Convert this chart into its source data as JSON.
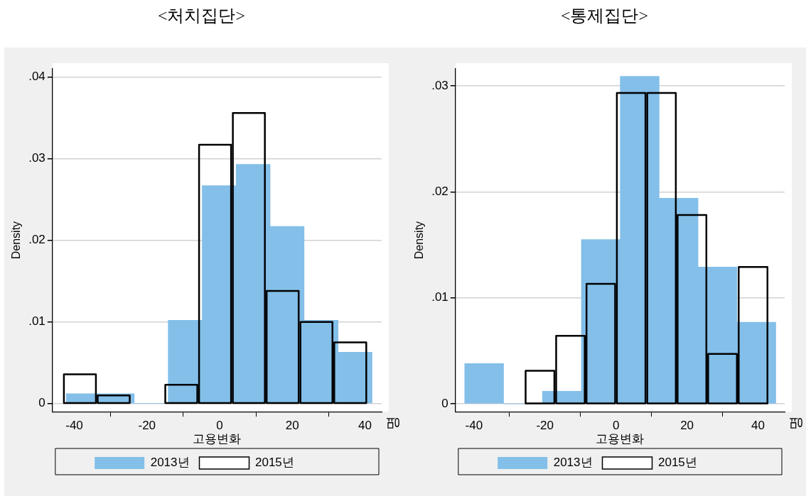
{
  "chart_data": [
    {
      "type": "histogram",
      "title": "<처치집단>",
      "xlabel": "고용변화",
      "ylabel": "Density",
      "bins": [
        -42.2,
        -32.85,
        -23.5,
        -14.15,
        -4.8,
        4.55,
        13.9,
        23.25,
        32.6,
        41.95
      ],
      "series": [
        {
          "name": "2013년",
          "color": "#83bfe9",
          "values": [
            0.0012,
            0.0012,
            0,
            0.0102,
            0.0267,
            0.0293,
            0.0217,
            0.0102,
            0.0063
          ]
        },
        {
          "name": "2015년",
          "color": "#000000",
          "line_style": "solid",
          "bins": [
            -43.1,
            -33.8,
            -24.5,
            -15.2,
            -5.9,
            3.4,
            12.7,
            22.0,
            31.3,
            40.6
          ],
          "values": [
            0.0037,
            0.0011,
            0,
            0.0024,
            0.0318,
            0.0357,
            0.0139,
            0.0101,
            0.0076
          ]
        }
      ],
      "xlim": [
        -46,
        44.6
      ],
      "xticks": [
        -40,
        -20,
        0,
        20,
        40
      ],
      "ylim": [
        -0.001,
        0.041
      ],
      "yticks": [
        0,
        {
          "value": 0.01,
          "label": ".01"
        },
        {
          "value": 0.02,
          "label": ".02"
        },
        {
          "value": 0.03,
          "label": ".03"
        },
        {
          "value": 0.04,
          "label": ".04"
        }
      ],
      "grid": "y",
      "legend": "bottom",
      "annotations": [
        "명"
      ]
    },
    {
      "type": "histogram",
      "title": "<통제집단>",
      "xlabel": "고용변화",
      "ylabel": "Density",
      "bins": [
        -42.6,
        -31.65,
        -20.7,
        -9.75,
        1.2,
        12.15,
        23.1,
        34.05,
        45.0
      ],
      "series": [
        {
          "name": "2013년",
          "color": "#83bfe9",
          "values": [
            0.0038,
            0,
            0.0012,
            0.0155,
            0.0309,
            0.0194,
            0.0129,
            0.0077
          ]
        },
        {
          "name": "2015년",
          "color": "#000000",
          "line_style": "solid",
          "bins": [
            -25.7,
            -17.1,
            -8.55,
            0,
            8.55,
            17.1,
            25.7,
            34.3,
            42.9
          ],
          "values": [
            0.0032,
            0.0065,
            0.0114,
            0.0294,
            0.0294,
            0.0179,
            0.0048,
            0.013
          ]
        }
      ],
      "xlim": [
        -45.2,
        47.5
      ],
      "xticks": [
        -40,
        -20,
        0,
        20,
        40
      ],
      "ylim": [
        -0.00074,
        0.0316
      ],
      "yticks": [
        0,
        {
          "value": 0.01,
          "label": ".01"
        },
        {
          "value": 0.02,
          "label": ".02"
        },
        {
          "value": 0.03,
          "label": ".03"
        }
      ],
      "grid": "y",
      "legend": "bottom",
      "annotations": [
        "명"
      ]
    }
  ]
}
